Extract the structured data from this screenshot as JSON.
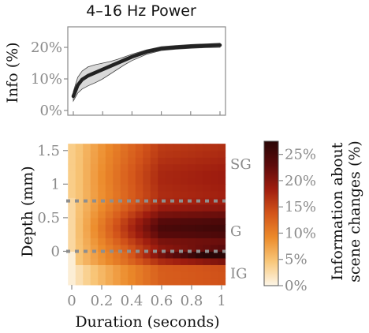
{
  "chart_data": [
    {
      "type": "line",
      "title": "4–16 Hz  Power",
      "xlabel": "",
      "ylabel": "Info (%)",
      "xlim": [
        0,
        1
      ],
      "ylim": [
        0,
        25
      ],
      "yticks": [
        0,
        10,
        20
      ],
      "ytick_labels": [
        "0%",
        "10%",
        "20%"
      ],
      "xticks": [
        0,
        0.2,
        0.4,
        0.6,
        0.8,
        1
      ],
      "series": [
        {
          "x": [
            0.0,
            0.03,
            0.06,
            0.1,
            0.15,
            0.2,
            0.25,
            0.3,
            0.35,
            0.4,
            0.5,
            0.6,
            0.7,
            0.8,
            0.9,
            1.0
          ],
          "y": [
            4.5,
            8.0,
            9.8,
            11.0,
            12.0,
            13.0,
            14.0,
            15.0,
            16.0,
            17.0,
            18.6,
            19.6,
            20.0,
            20.3,
            20.5,
            20.7
          ],
          "lower": [
            3.0,
            5.5,
            6.8,
            7.8,
            8.8,
            10.0,
            11.5,
            13.0,
            14.5,
            15.8,
            17.8,
            19.0,
            19.4,
            19.7,
            19.9,
            20.0
          ],
          "upper": [
            6.0,
            10.5,
            12.5,
            13.8,
            14.5,
            15.0,
            15.5,
            16.2,
            17.0,
            17.8,
            19.2,
            20.2,
            20.6,
            20.9,
            21.1,
            21.3
          ]
        }
      ],
      "colors": {
        "line": "#222222",
        "band": "#d9d9d9"
      }
    },
    {
      "type": "heatmap",
      "xlabel": "Duration (seconds)",
      "ylabel": "Depth (mm)",
      "xlim": [
        0,
        1
      ],
      "ylim": [
        -0.5,
        1.65
      ],
      "xticks": [
        0,
        0.2,
        0.4,
        0.6,
        0.8,
        1
      ],
      "xtick_labels": [
        "0",
        "0.2",
        "0.4",
        "0.6",
        "0.8",
        "1"
      ],
      "yticks": [
        0,
        0.5,
        1,
        1.5
      ],
      "ytick_labels": [
        "0",
        "0.5",
        "1",
        "1.5"
      ],
      "layer_labels": [
        {
          "text": "SG",
          "depth": 1.3
        },
        {
          "text": "G",
          "depth": 0.3
        },
        {
          "text": "IG",
          "depth": -0.33
        }
      ],
      "boundaries": [
        0.75,
        0.0
      ],
      "x": [
        0.0,
        0.05,
        0.1,
        0.15,
        0.2,
        0.25,
        0.3,
        0.35,
        0.4,
        0.45,
        0.5,
        0.55,
        0.6,
        0.65,
        0.7,
        0.75,
        0.8,
        0.85,
        0.9,
        0.95,
        1.0
      ],
      "y": [
        -0.45,
        -0.35,
        -0.25,
        -0.15,
        -0.05,
        0.05,
        0.15,
        0.25,
        0.35,
        0.45,
        0.55,
        0.65,
        0.75,
        0.85,
        0.95,
        1.05,
        1.15,
        1.25,
        1.35,
        1.45,
        1.55
      ],
      "colorbar": {
        "label_lines": [
          "Information about",
          "scene changes (%)"
        ],
        "ticks": [
          0,
          5,
          10,
          15,
          20,
          25
        ],
        "tick_labels": [
          "0%",
          "5%",
          "10%",
          "15%",
          "20%",
          "25%"
        ],
        "range": [
          0,
          27.5
        ],
        "stops": [
          "#fdf6e8",
          "#f8c77a",
          "#ec8b2b",
          "#d3551a",
          "#9f1d0f",
          "#5d0b0b",
          "#2a0606"
        ]
      }
    }
  ]
}
